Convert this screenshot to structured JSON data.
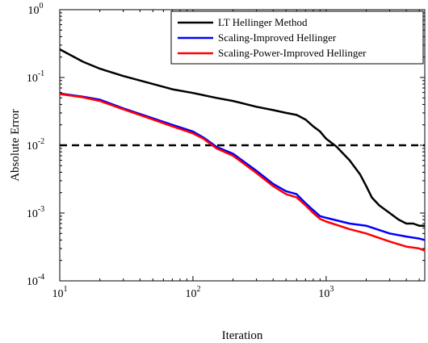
{
  "chart_data": {
    "type": "line",
    "xlabel": "Iteration",
    "ylabel": "Absolute Error",
    "xscale": "log",
    "yscale": "log",
    "xlim": [
      10,
      5500
    ],
    "ylim": [
      0.0001,
      1
    ],
    "x_ticks": [
      {
        "value": 10,
        "base": "10",
        "exp": "1"
      },
      {
        "value": 100,
        "base": "10",
        "exp": "2"
      },
      {
        "value": 1000,
        "base": "10",
        "exp": "3"
      }
    ],
    "y_ticks": [
      {
        "value": 1,
        "base": "10",
        "exp": "0"
      },
      {
        "value": 0.1,
        "base": "10",
        "exp": "-1"
      },
      {
        "value": 0.01,
        "base": "10",
        "exp": "-2"
      },
      {
        "value": 0.001,
        "base": "10",
        "exp": "-3"
      },
      {
        "value": 0.0001,
        "base": "10",
        "exp": "-4"
      }
    ],
    "legend_position": "top-right",
    "reference_line": {
      "y": 0.01,
      "style": "dashed",
      "color": "#000000"
    },
    "series": [
      {
        "name": "LT Hellinger Method",
        "color": "#000000",
        "points": [
          [
            10,
            0.26
          ],
          [
            15,
            0.17
          ],
          [
            20,
            0.135
          ],
          [
            30,
            0.105
          ],
          [
            50,
            0.08
          ],
          [
            70,
            0.067
          ],
          [
            100,
            0.059
          ],
          [
            150,
            0.05
          ],
          [
            200,
            0.045
          ],
          [
            300,
            0.037
          ],
          [
            400,
            0.033
          ],
          [
            500,
            0.03
          ],
          [
            600,
            0.028
          ],
          [
            700,
            0.024
          ],
          [
            800,
            0.019
          ],
          [
            900,
            0.016
          ],
          [
            1000,
            0.0125
          ],
          [
            1200,
            0.0095
          ],
          [
            1500,
            0.006
          ],
          [
            1800,
            0.0037
          ],
          [
            2000,
            0.0025
          ],
          [
            2200,
            0.0017
          ],
          [
            2500,
            0.0013
          ],
          [
            3000,
            0.001
          ],
          [
            3500,
            0.0008
          ],
          [
            4000,
            0.0007
          ],
          [
            4500,
            0.0007
          ],
          [
            5000,
            0.00065
          ],
          [
            5500,
            0.00065
          ]
        ]
      },
      {
        "name": "Scaling-Improved Hellinger",
        "color": "#0000ff",
        "points": [
          [
            10,
            0.058
          ],
          [
            15,
            0.052
          ],
          [
            20,
            0.047
          ],
          [
            30,
            0.035
          ],
          [
            50,
            0.025
          ],
          [
            70,
            0.02
          ],
          [
            100,
            0.016
          ],
          [
            120,
            0.013
          ],
          [
            150,
            0.0095
          ],
          [
            200,
            0.0075
          ],
          [
            300,
            0.0042
          ],
          [
            400,
            0.0027
          ],
          [
            500,
            0.0021
          ],
          [
            600,
            0.0019
          ],
          [
            700,
            0.0014
          ],
          [
            800,
            0.0011
          ],
          [
            900,
            0.0009
          ],
          [
            1000,
            0.00085
          ],
          [
            1500,
            0.0007
          ],
          [
            2000,
            0.00065
          ],
          [
            3000,
            0.0005
          ],
          [
            4000,
            0.00045
          ],
          [
            5000,
            0.00042
          ],
          [
            5500,
            0.0004
          ]
        ]
      },
      {
        "name": "Scaling-Power-Improved Hellinger",
        "color": "#ff0000",
        "points": [
          [
            10,
            0.057
          ],
          [
            15,
            0.051
          ],
          [
            20,
            0.045
          ],
          [
            30,
            0.034
          ],
          [
            50,
            0.024
          ],
          [
            70,
            0.019
          ],
          [
            100,
            0.015
          ],
          [
            120,
            0.0125
          ],
          [
            150,
            0.009
          ],
          [
            200,
            0.007
          ],
          [
            300,
            0.0039
          ],
          [
            400,
            0.0025
          ],
          [
            500,
            0.0019
          ],
          [
            600,
            0.0017
          ],
          [
            700,
            0.0013
          ],
          [
            800,
            0.001
          ],
          [
            900,
            0.00082
          ],
          [
            1000,
            0.00075
          ],
          [
            1500,
            0.00058
          ],
          [
            2000,
            0.0005
          ],
          [
            3000,
            0.00038
          ],
          [
            4000,
            0.00032
          ],
          [
            5000,
            0.0003
          ],
          [
            5500,
            0.00028
          ]
        ]
      }
    ]
  }
}
